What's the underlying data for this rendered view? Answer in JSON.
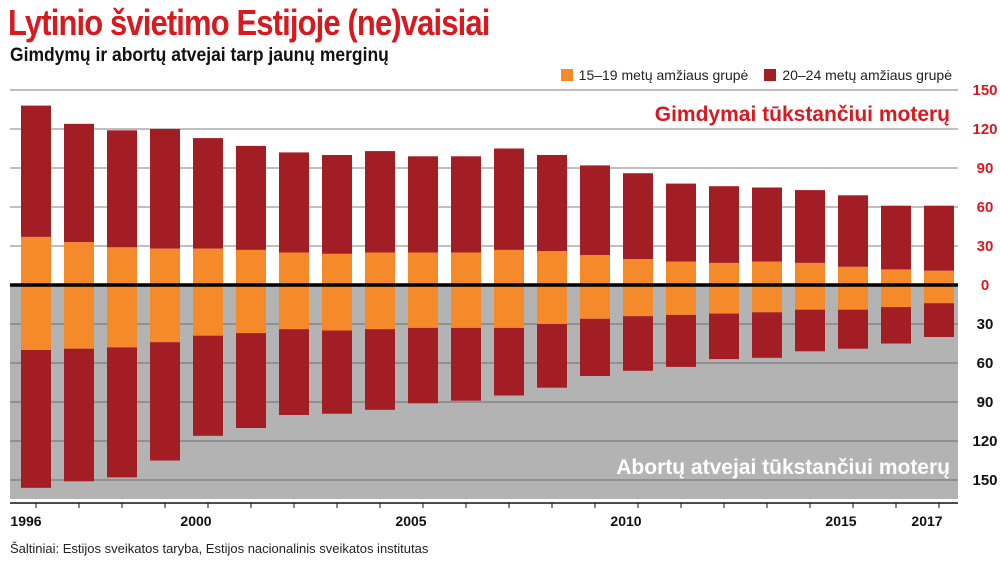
{
  "title": "Lytinio švietimo Estijoje (ne)vaisiai",
  "subtitle": "Gimdymų ir abortų atvejai tarp jaunų merginų",
  "source": "Šaltiniai: Estijos sveikatos taryba, Estijos nacionalinis sveikatos institutas",
  "colors": {
    "young": "#f58a2a",
    "older": "#a31d24",
    "accent": "#d71920",
    "negative_bg": "#b3b3b3"
  },
  "chart_data": {
    "type": "bar",
    "title": "Lytinio švietimo Estijoje (ne)vaisiai",
    "subtitle": "Gimdymų ir abortų atvejai tarp jaunų merginų",
    "legend": [
      {
        "name": "15–19 metų amžiaus grupė",
        "color": "#f58a2a"
      },
      {
        "name": "20–24 metų amžiaus grupė",
        "color": "#a31d24"
      }
    ],
    "legend_position": "top-right",
    "top_label": "Gimdymai tūkstančiui moterų",
    "bottom_label": "Abortų atvejai tūkstančiui moterų",
    "x": [
      1996,
      1997,
      1998,
      1999,
      2000,
      2001,
      2002,
      2003,
      2004,
      2005,
      2006,
      2007,
      2008,
      2009,
      2010,
      2011,
      2012,
      2013,
      2014,
      2015,
      2016,
      2017
    ],
    "x_tick_labels": [
      {
        "year": 1996,
        "label": "1996"
      },
      {
        "year": 2000,
        "label": "2000"
      },
      {
        "year": 2005,
        "label": "2005"
      },
      {
        "year": 2010,
        "label": "2010"
      },
      {
        "year": 2015,
        "label": "2015"
      },
      {
        "year": 2017,
        "label": "2017"
      }
    ],
    "y_ticks": [
      150,
      120,
      90,
      60,
      30,
      0,
      -30,
      -60,
      -90,
      -120,
      -150
    ],
    "y_tick_labels": [
      "150",
      "120",
      "90",
      "60",
      "30",
      "0",
      "30",
      "60",
      "90",
      "120",
      "150"
    ],
    "ylim": [
      -160,
      150
    ],
    "grid": true,
    "births": {
      "series": [
        {
          "name": "15–19 metų amžiaus grupė",
          "values": [
            37,
            33,
            29,
            28,
            28,
            27,
            25,
            24,
            25,
            25,
            25,
            27,
            26,
            23,
            20,
            18,
            17,
            18,
            17,
            14,
            12,
            11
          ]
        },
        {
          "name": "20–24 metų amžiaus grupė",
          "values": [
            101,
            91,
            90,
            92,
            85,
            80,
            77,
            76,
            78,
            74,
            74,
            78,
            74,
            69,
            66,
            60,
            59,
            57,
            56,
            55,
            49,
            50
          ]
        }
      ]
    },
    "abortions": {
      "series": [
        {
          "name": "15–19 metų amžiaus grupė",
          "values": [
            50,
            49,
            48,
            44,
            39,
            37,
            34,
            35,
            34,
            33,
            33,
            33,
            30,
            26,
            24,
            23,
            22,
            21,
            19,
            19,
            17,
            14
          ]
        },
        {
          "name": "20–24 metų amžiaus grupė",
          "values": [
            106,
            102,
            100,
            91,
            77,
            73,
            66,
            64,
            62,
            58,
            56,
            52,
            49,
            44,
            42,
            40,
            35,
            35,
            32,
            30,
            28,
            26
          ]
        }
      ]
    }
  }
}
